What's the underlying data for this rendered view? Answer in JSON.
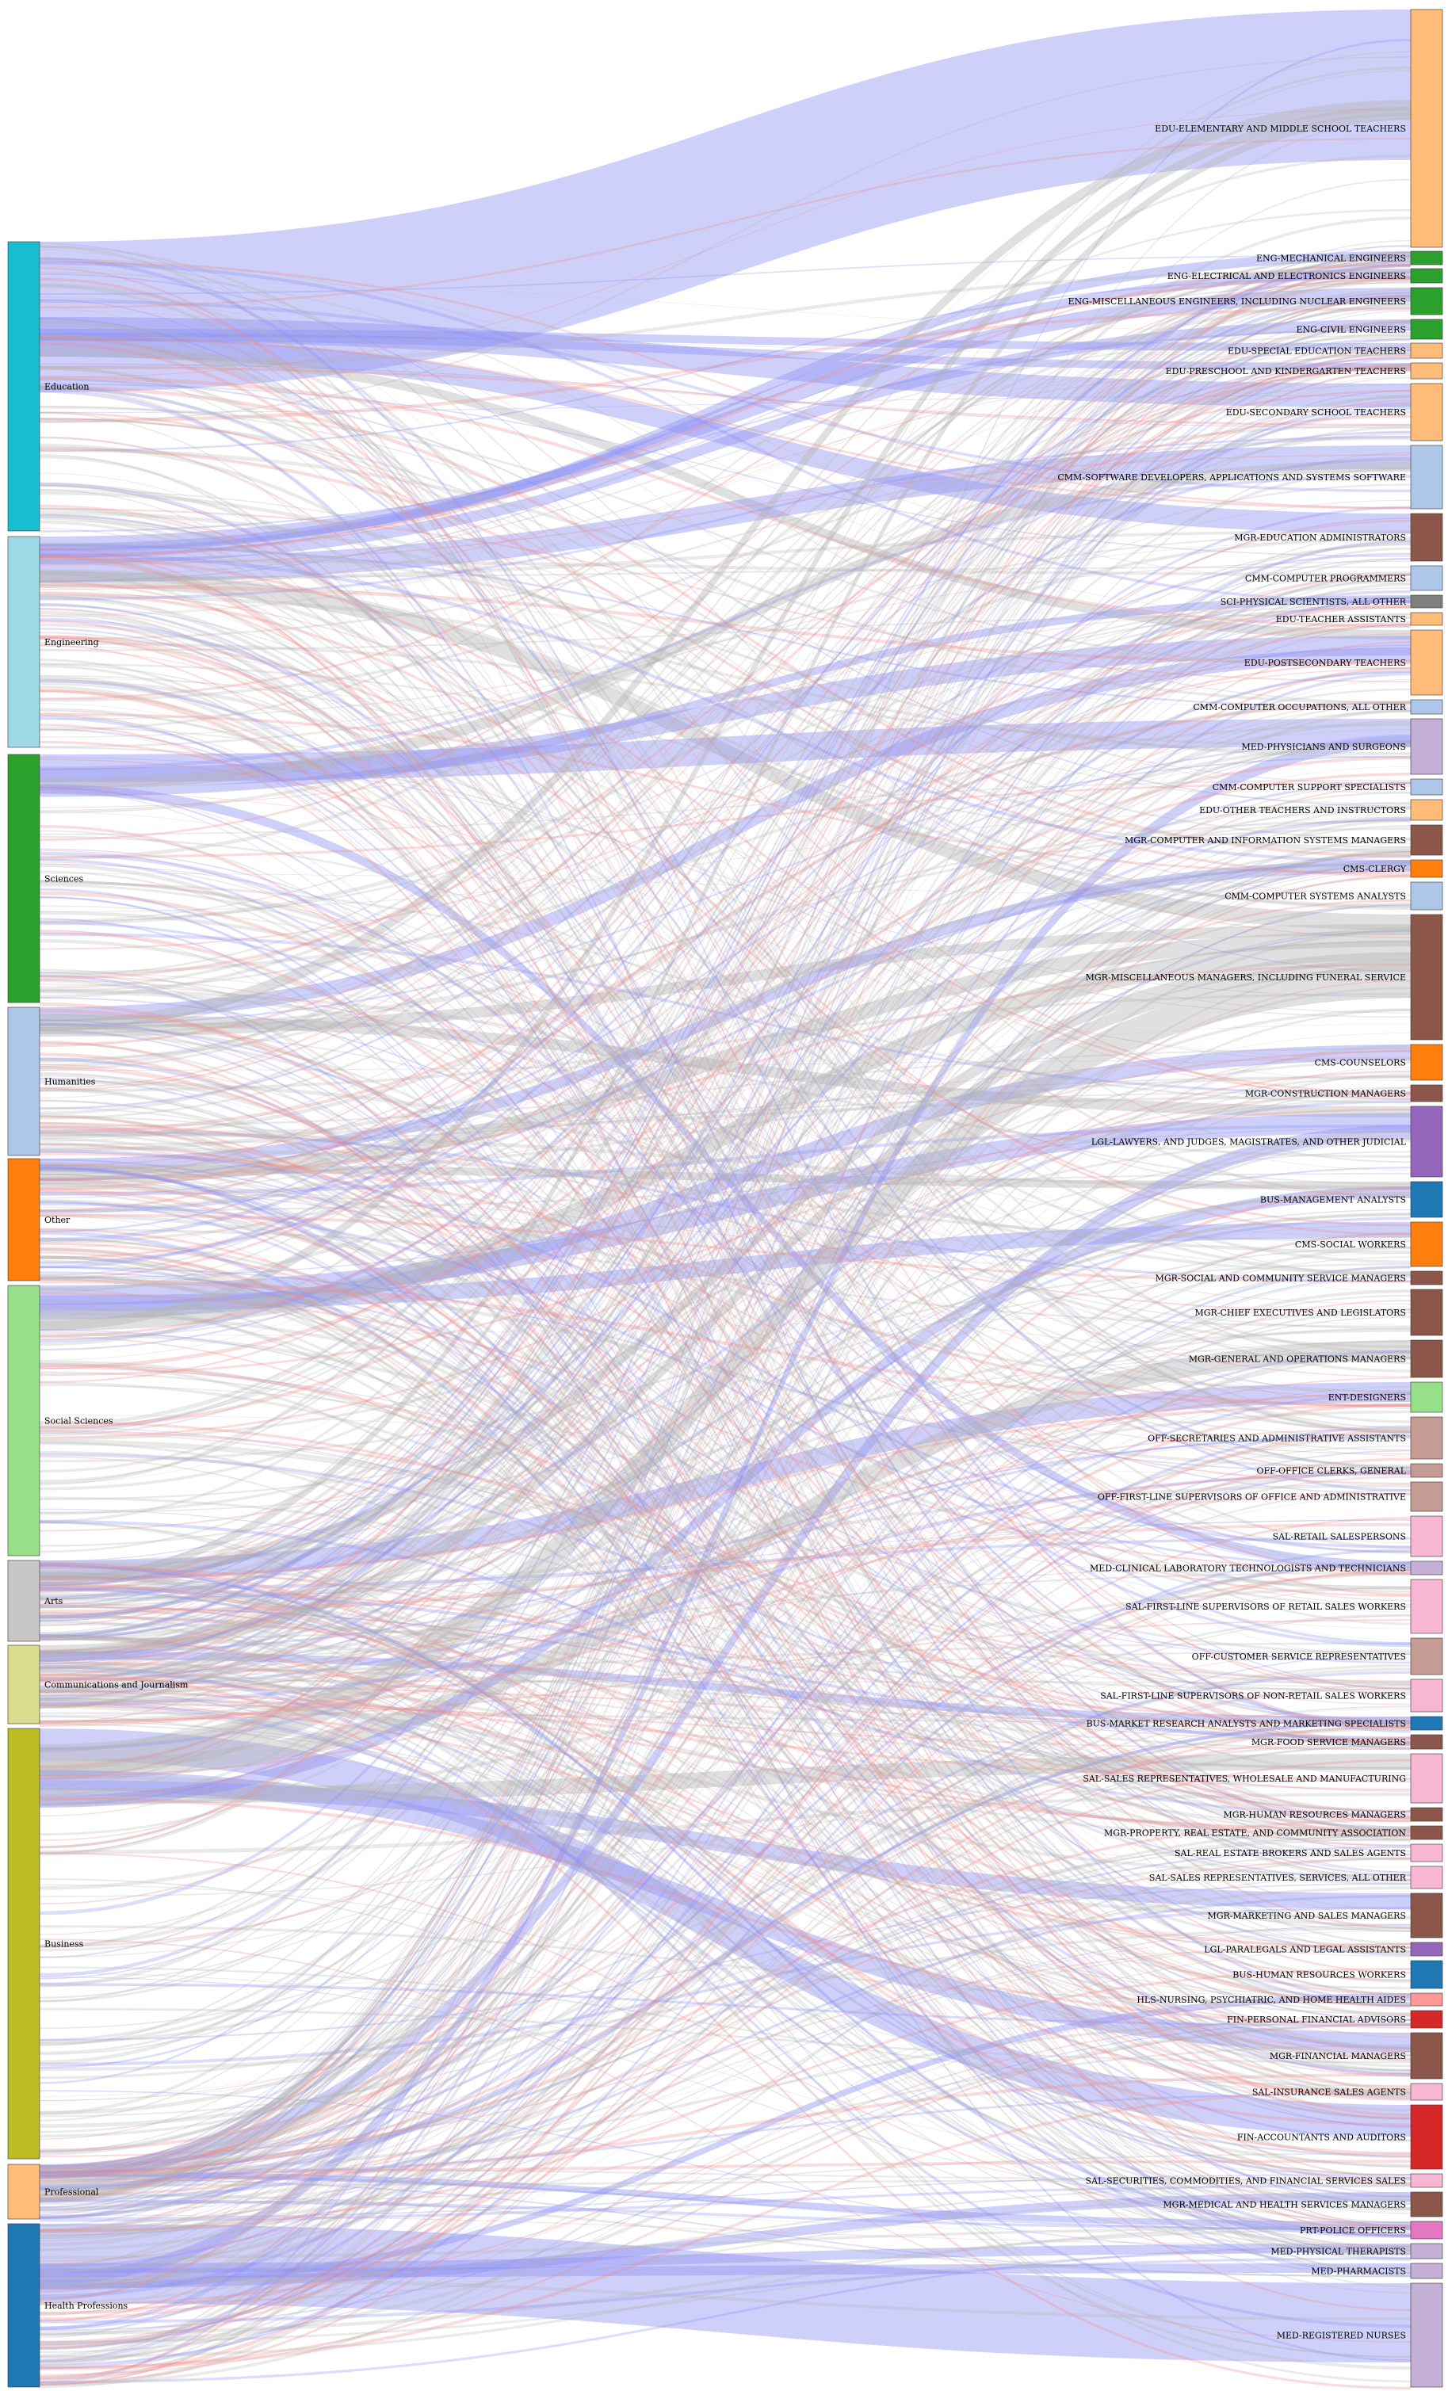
{
  "sources": [
    {
      "label": "Education",
      "color": "#17becf"
    },
    {
      "label": "Engineering",
      "color": "#9edae5"
    },
    {
      "label": "Sciences",
      "color": "#2ca02c"
    },
    {
      "label": "Humanities",
      "color": "#aec7e8"
    },
    {
      "label": "Other",
      "color": "#ff7f0e"
    },
    {
      "label": "Social Sciences",
      "color": "#98df8a"
    },
    {
      "label": "Arts",
      "color": "#c7c7c7"
    },
    {
      "label": "Communications and Journalism",
      "color": "#dbdb8d"
    },
    {
      "label": "Business",
      "color": "#bcbd22"
    },
    {
      "label": "Professional",
      "color": "#ffbb78"
    },
    {
      "label": "Health Professions",
      "color": "#1f77b4"
    }
  ],
  "targets": [
    {
      "label": "EDU-ELEMENTARY AND MIDDLE SCHOOL TEACHERS",
      "color": "#ffbb78"
    },
    {
      "label": "ENG-MECHANICAL ENGINEERS",
      "color": "#2ca02c"
    },
    {
      "label": "ENG-ELECTRICAL AND ELECTRONICS ENGINEERS",
      "color": "#2ca02c"
    },
    {
      "label": "ENG-MISCELLANEOUS ENGINEERS, INCLUDING NUCLEAR ENGINEERS",
      "color": "#2ca02c"
    },
    {
      "label": "ENG-CIVIL ENGINEERS",
      "color": "#2ca02c"
    },
    {
      "label": "EDU-SPECIAL EDUCATION TEACHERS",
      "color": "#ffbb78"
    },
    {
      "label": "EDU-PRESCHOOL AND KINDERGARTEN TEACHERS",
      "color": "#ffbb78"
    },
    {
      "label": "EDU-SECONDARY SCHOOL TEACHERS",
      "color": "#ffbb78"
    },
    {
      "label": "CMM-SOFTWARE DEVELOPERS, APPLICATIONS AND SYSTEMS SOFTWARE",
      "color": "#aec7e8"
    },
    {
      "label": "MGR-EDUCATION ADMINISTRATORS",
      "color": "#8c564b"
    },
    {
      "label": "CMM-COMPUTER PROGRAMMERS",
      "color": "#aec7e8"
    },
    {
      "label": "SCI-PHYSICAL SCIENTISTS, ALL OTHER",
      "color": "#7f7f7f"
    },
    {
      "label": "EDU-TEACHER ASSISTANTS",
      "color": "#ffbb78"
    },
    {
      "label": "EDU-POSTSECONDARY TEACHERS",
      "color": "#ffbb78"
    },
    {
      "label": "CMM-COMPUTER OCCUPATIONS, ALL OTHER",
      "color": "#aec7e8"
    },
    {
      "label": "MED-PHYSICIANS AND SURGEONS",
      "color": "#c5b0d5"
    },
    {
      "label": "CMM-COMPUTER SUPPORT SPECIALISTS",
      "color": "#aec7e8"
    },
    {
      "label": "EDU-OTHER TEACHERS AND INSTRUCTORS",
      "color": "#ffbb78"
    },
    {
      "label": "MGR-COMPUTER AND INFORMATION SYSTEMS MANAGERS",
      "color": "#8c564b"
    },
    {
      "label": "CMS-CLERGY",
      "color": "#ff7f0e"
    },
    {
      "label": "CMM-COMPUTER SYSTEMS ANALYSTS",
      "color": "#aec7e8"
    },
    {
      "label": "MGR-MISCELLANEOUS MANAGERS, INCLUDING FUNERAL SERVICE",
      "color": "#8c564b"
    },
    {
      "label": "CMS-COUNSELORS",
      "color": "#ff7f0e"
    },
    {
      "label": "MGR-CONSTRUCTION MANAGERS",
      "color": "#8c564b"
    },
    {
      "label": "LGL-LAWYERS, AND JUDGES, MAGISTRATES, AND OTHER JUDICIAL",
      "color": "#9467bd"
    },
    {
      "label": "BUS-MANAGEMENT ANALYSTS",
      "color": "#1f77b4"
    },
    {
      "label": "CMS-SOCIAL WORKERS",
      "color": "#ff7f0e"
    },
    {
      "label": "MGR-SOCIAL AND COMMUNITY SERVICE MANAGERS",
      "color": "#8c564b"
    },
    {
      "label": "MGR-CHIEF EXECUTIVES AND LEGISLATORS",
      "color": "#8c564b"
    },
    {
      "label": "MGR-GENERAL AND OPERATIONS MANAGERS",
      "color": "#8c564b"
    },
    {
      "label": "ENT-DESIGNERS",
      "color": "#98df8a"
    },
    {
      "label": "OFF-SECRETARIES AND ADMINISTRATIVE ASSISTANTS",
      "color": "#c49c94"
    },
    {
      "label": "OFF-OFFICE CLERKS, GENERAL",
      "color": "#c49c94"
    },
    {
      "label": "OFF-FIRST-LINE SUPERVISORS OF OFFICE AND ADMINISTRATIVE",
      "color": "#c49c94"
    },
    {
      "label": "SAL-RETAIL SALESPERSONS",
      "color": "#f7b6d2"
    },
    {
      "label": "MED-CLINICAL LABORATORY TECHNOLOGISTS AND TECHNICIANS",
      "color": "#c5b0d5"
    },
    {
      "label": "SAL-FIRST-LINE SUPERVISORS OF RETAIL SALES WORKERS",
      "color": "#f7b6d2"
    },
    {
      "label": "OFF-CUSTOMER SERVICE REPRESENTATIVES",
      "color": "#c49c94"
    },
    {
      "label": "SAL-FIRST-LINE SUPERVISORS OF NON-RETAIL SALES WORKERS",
      "color": "#f7b6d2"
    },
    {
      "label": "BUS-MARKET RESEARCH ANALYSTS AND MARKETING SPECIALISTS",
      "color": "#1f77b4"
    },
    {
      "label": "MGR-FOOD SERVICE MANAGERS",
      "color": "#8c564b"
    },
    {
      "label": "SAL-SALES REPRESENTATIVES, WHOLESALE AND MANUFACTURING",
      "color": "#f7b6d2"
    },
    {
      "label": "MGR-HUMAN RESOURCES MANAGERS",
      "color": "#8c564b"
    },
    {
      "label": "MGR-PROPERTY, REAL ESTATE, AND COMMUNITY ASSOCIATION",
      "color": "#8c564b"
    },
    {
      "label": "SAL-REAL ESTATE BROKERS AND SALES AGENTS",
      "color": "#f7b6d2"
    },
    {
      "label": "SAL-SALES REPRESENTATIVES, SERVICES, ALL OTHER",
      "color": "#f7b6d2"
    },
    {
      "label": "MGR-MARKETING AND SALES MANAGERS",
      "color": "#8c564b"
    },
    {
      "label": "LGL-PARALEGALS AND LEGAL ASSISTANTS",
      "color": "#9467bd"
    },
    {
      "label": "BUS-HUMAN RESOURCES WORKERS",
      "color": "#1f77b4"
    },
    {
      "label": "HLS-NURSING, PSYCHIATRIC, AND HOME HEALTH AIDES",
      "color": "#ff9896"
    },
    {
      "label": "FIN-PERSONAL FINANCIAL ADVISORS",
      "color": "#d62728"
    },
    {
      "label": "MGR-FINANCIAL MANAGERS",
      "color": "#8c564b"
    },
    {
      "label": "SAL-INSURANCE SALES AGENTS",
      "color": "#f7b6d2"
    },
    {
      "label": "FIN-ACCOUNTANTS AND AUDITORS",
      "color": "#d62728"
    },
    {
      "label": "SAL-SECURITIES, COMMODITIES, AND FINANCIAL SERVICES SALES",
      "color": "#f7b6d2"
    },
    {
      "label": "MGR-MEDICAL AND HEALTH SERVICES MANAGERS",
      "color": "#8c564b"
    },
    {
      "label": "PRT-POLICE OFFICERS",
      "color": "#e377c2"
    },
    {
      "label": "MED-PHYSICAL THERAPISTS",
      "color": "#c5b0d5"
    },
    {
      "label": "MED-PHARMACISTS",
      "color": "#c5b0d5"
    },
    {
      "label": "MED-REGISTERED NURSES",
      "color": "#c5b0d5"
    }
  ],
  "link_colors": {
    "over": "#8c8ff2",
    "under": "#f08a8a",
    "neutral": "#b4b4b4"
  }
}
